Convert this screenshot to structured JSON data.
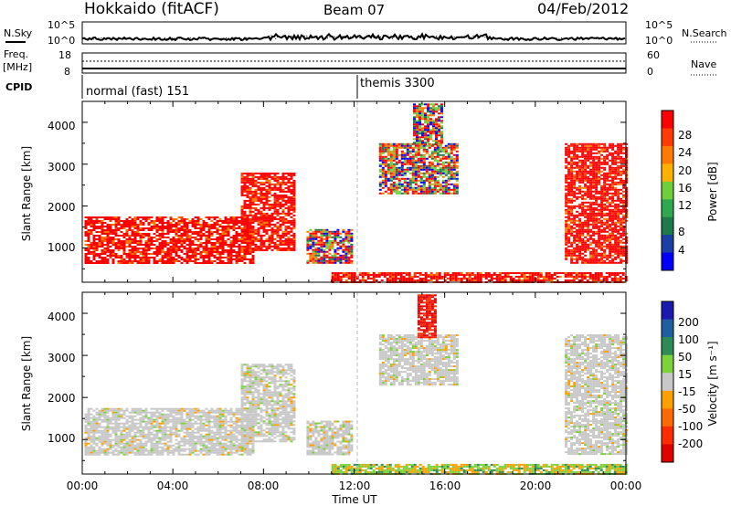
{
  "header": {
    "title_left": "Hokkaido (fitACF)",
    "title_center": "Beam 07",
    "title_right": "04/Feb/2012"
  },
  "noise_panel": {
    "left_label": "N.Sky",
    "right_label": "N.Search",
    "left_ticks": [
      "10^5",
      "10^0"
    ],
    "right_ticks": [
      "10^5",
      "10^0"
    ]
  },
  "freq_panel": {
    "left_label_1": "Freq.",
    "left_label_2": "[MHz]",
    "right_label": "Nave",
    "left_ticks": [
      "18",
      "8"
    ],
    "right_ticks": [
      "60",
      "0"
    ]
  },
  "cpid_panel": {
    "label": "CPID",
    "segments": [
      "normal (fast) 151",
      "themis 3300"
    ]
  },
  "chart_data": [
    {
      "type": "heatmap",
      "panel": "power",
      "ylabel": "Slant Range [km]",
      "xlabel": "",
      "ylim": [
        180,
        4500
      ],
      "yticks": [
        "1000",
        "2000",
        "3000",
        "4000"
      ],
      "xlim_hours": [
        0,
        24
      ],
      "colorbar": {
        "label": "Power [dB]",
        "ticks": [
          "4",
          "8",
          "12",
          "16",
          "20",
          "24",
          "28"
        ],
        "colors": [
          "#0000ff",
          "#1a3fa6",
          "#1f7a4a",
          "#2fa84f",
          "#6fcf3a",
          "#ffb000",
          "#ff7a00",
          "#ff3a00",
          "#ff0000"
        ]
      },
      "regions": [
        {
          "t": [
            0.1,
            7.6
          ],
          "r": [
            650,
            1750
          ],
          "level": "high"
        },
        {
          "t": [
            7.0,
            9.3
          ],
          "r": [
            950,
            2800
          ],
          "level": "high"
        },
        {
          "t": [
            9.9,
            11.9
          ],
          "r": [
            650,
            1450
          ],
          "level": "mixed"
        },
        {
          "t": [
            13.1,
            16.6
          ],
          "r": [
            2300,
            3500
          ],
          "level": "mixed"
        },
        {
          "t": [
            14.6,
            15.9
          ],
          "r": [
            3450,
            4450
          ],
          "level": "mixed"
        },
        {
          "t": [
            21.3,
            24.0
          ],
          "r": [
            650,
            3500
          ],
          "level": "high"
        },
        {
          "t": [
            11.0,
            24.0
          ],
          "r": [
            180,
            420
          ],
          "level": "high"
        }
      ]
    },
    {
      "type": "heatmap",
      "panel": "velocity",
      "ylabel": "Slant Range [km]",
      "xlabel": "Time UT",
      "ylim": [
        180,
        4500
      ],
      "yticks": [
        "1000",
        "2000",
        "3000",
        "4000"
      ],
      "xticks": [
        "00:00",
        "04:00",
        "08:00",
        "12:00",
        "16:00",
        "20:00",
        "00:00"
      ],
      "xlim_hours": [
        0,
        24
      ],
      "colorbar": {
        "label": "Velocity [m s⁻¹]",
        "ticks": [
          "200",
          "100",
          "50",
          "15",
          "-15",
          "-50",
          "-100",
          "-200"
        ],
        "colors": [
          "#1a1ab0",
          "#1f5fa0",
          "#2e8b57",
          "#7bd23a",
          "#c8c8c8",
          "#ffa000",
          "#ff6a00",
          "#ff2a00",
          "#e00000"
        ]
      },
      "regions": [
        {
          "t": [
            0.1,
            7.6
          ],
          "r": [
            650,
            1750
          ],
          "level": "zero"
        },
        {
          "t": [
            7.0,
            9.3
          ],
          "r": [
            950,
            2800
          ],
          "level": "zero"
        },
        {
          "t": [
            9.9,
            11.9
          ],
          "r": [
            650,
            1450
          ],
          "level": "zero"
        },
        {
          "t": [
            13.1,
            16.6
          ],
          "r": [
            2300,
            3500
          ],
          "level": "zero"
        },
        {
          "t": [
            14.8,
            15.6
          ],
          "r": [
            3450,
            4450
          ],
          "level": "negative"
        },
        {
          "t": [
            21.3,
            24.0
          ],
          "r": [
            650,
            3500
          ],
          "level": "zero"
        },
        {
          "t": [
            11.0,
            24.0
          ],
          "r": [
            180,
            420
          ],
          "level": "positive"
        }
      ]
    }
  ]
}
